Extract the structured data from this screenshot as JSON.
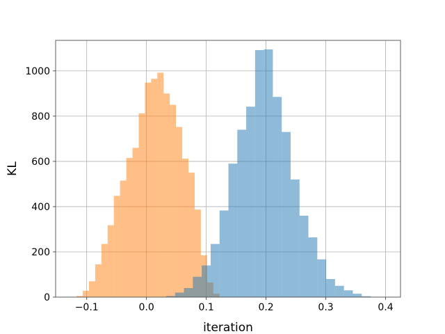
{
  "chart_data": {
    "type": "bar",
    "subtype": "overlaid-histogram",
    "xlabel": "iteration",
    "ylabel": "KL",
    "xlim": [
      -0.152,
      0.425
    ],
    "ylim": [
      0,
      1135
    ],
    "grid": true,
    "x_ticks": [
      -0.1,
      0.0,
      0.1,
      0.2,
      0.3,
      0.4
    ],
    "x_tick_labels": [
      "−0.1",
      "0.0",
      "0.1",
      "0.2",
      "0.3",
      "0.4"
    ],
    "y_ticks": [
      0,
      200,
      400,
      600,
      800,
      1000
    ],
    "y_tick_labels": [
      "0",
      "200",
      "400",
      "600",
      "800",
      "1000"
    ],
    "series": [
      {
        "color": "#ff7f0e",
        "opacity": 0.5,
        "bin_width": 0.0104,
        "bin_starts": [
          -0.117,
          -0.1066,
          -0.0962,
          -0.0858,
          -0.0754,
          -0.065,
          -0.0546,
          -0.0442,
          -0.0338,
          -0.0234,
          -0.013,
          -0.0026,
          0.0078,
          0.0182,
          0.0286,
          0.039,
          0.0494,
          0.0598,
          0.0702,
          0.0806,
          0.091,
          0.1014,
          0.1118
        ],
        "counts": [
          5,
          28,
          70,
          145,
          235,
          318,
          448,
          515,
          615,
          660,
          812,
          948,
          965,
          992,
          900,
          850,
          752,
          612,
          550,
          387,
          185,
          65,
          15
        ]
      },
      {
        "color": "#1f77b4",
        "opacity": 0.5,
        "bin_width": 0.01487,
        "bin_starts": [
          0.033,
          0.04787,
          0.06274,
          0.07761,
          0.09248,
          0.10735,
          0.12222,
          0.13709,
          0.15196,
          0.16683,
          0.1817,
          0.19657,
          0.21144,
          0.22631,
          0.24118,
          0.25605,
          0.27092,
          0.28579,
          0.30066,
          0.31553,
          0.3304,
          0.34527,
          0.36014,
          0.37501
        ],
        "counts": [
          5,
          20,
          40,
          90,
          140,
          235,
          383,
          590,
          740,
          842,
          1092,
          1095,
          885,
          730,
          520,
          360,
          264,
          167,
          80,
          50,
          30,
          15,
          4,
          1
        ]
      }
    ]
  }
}
